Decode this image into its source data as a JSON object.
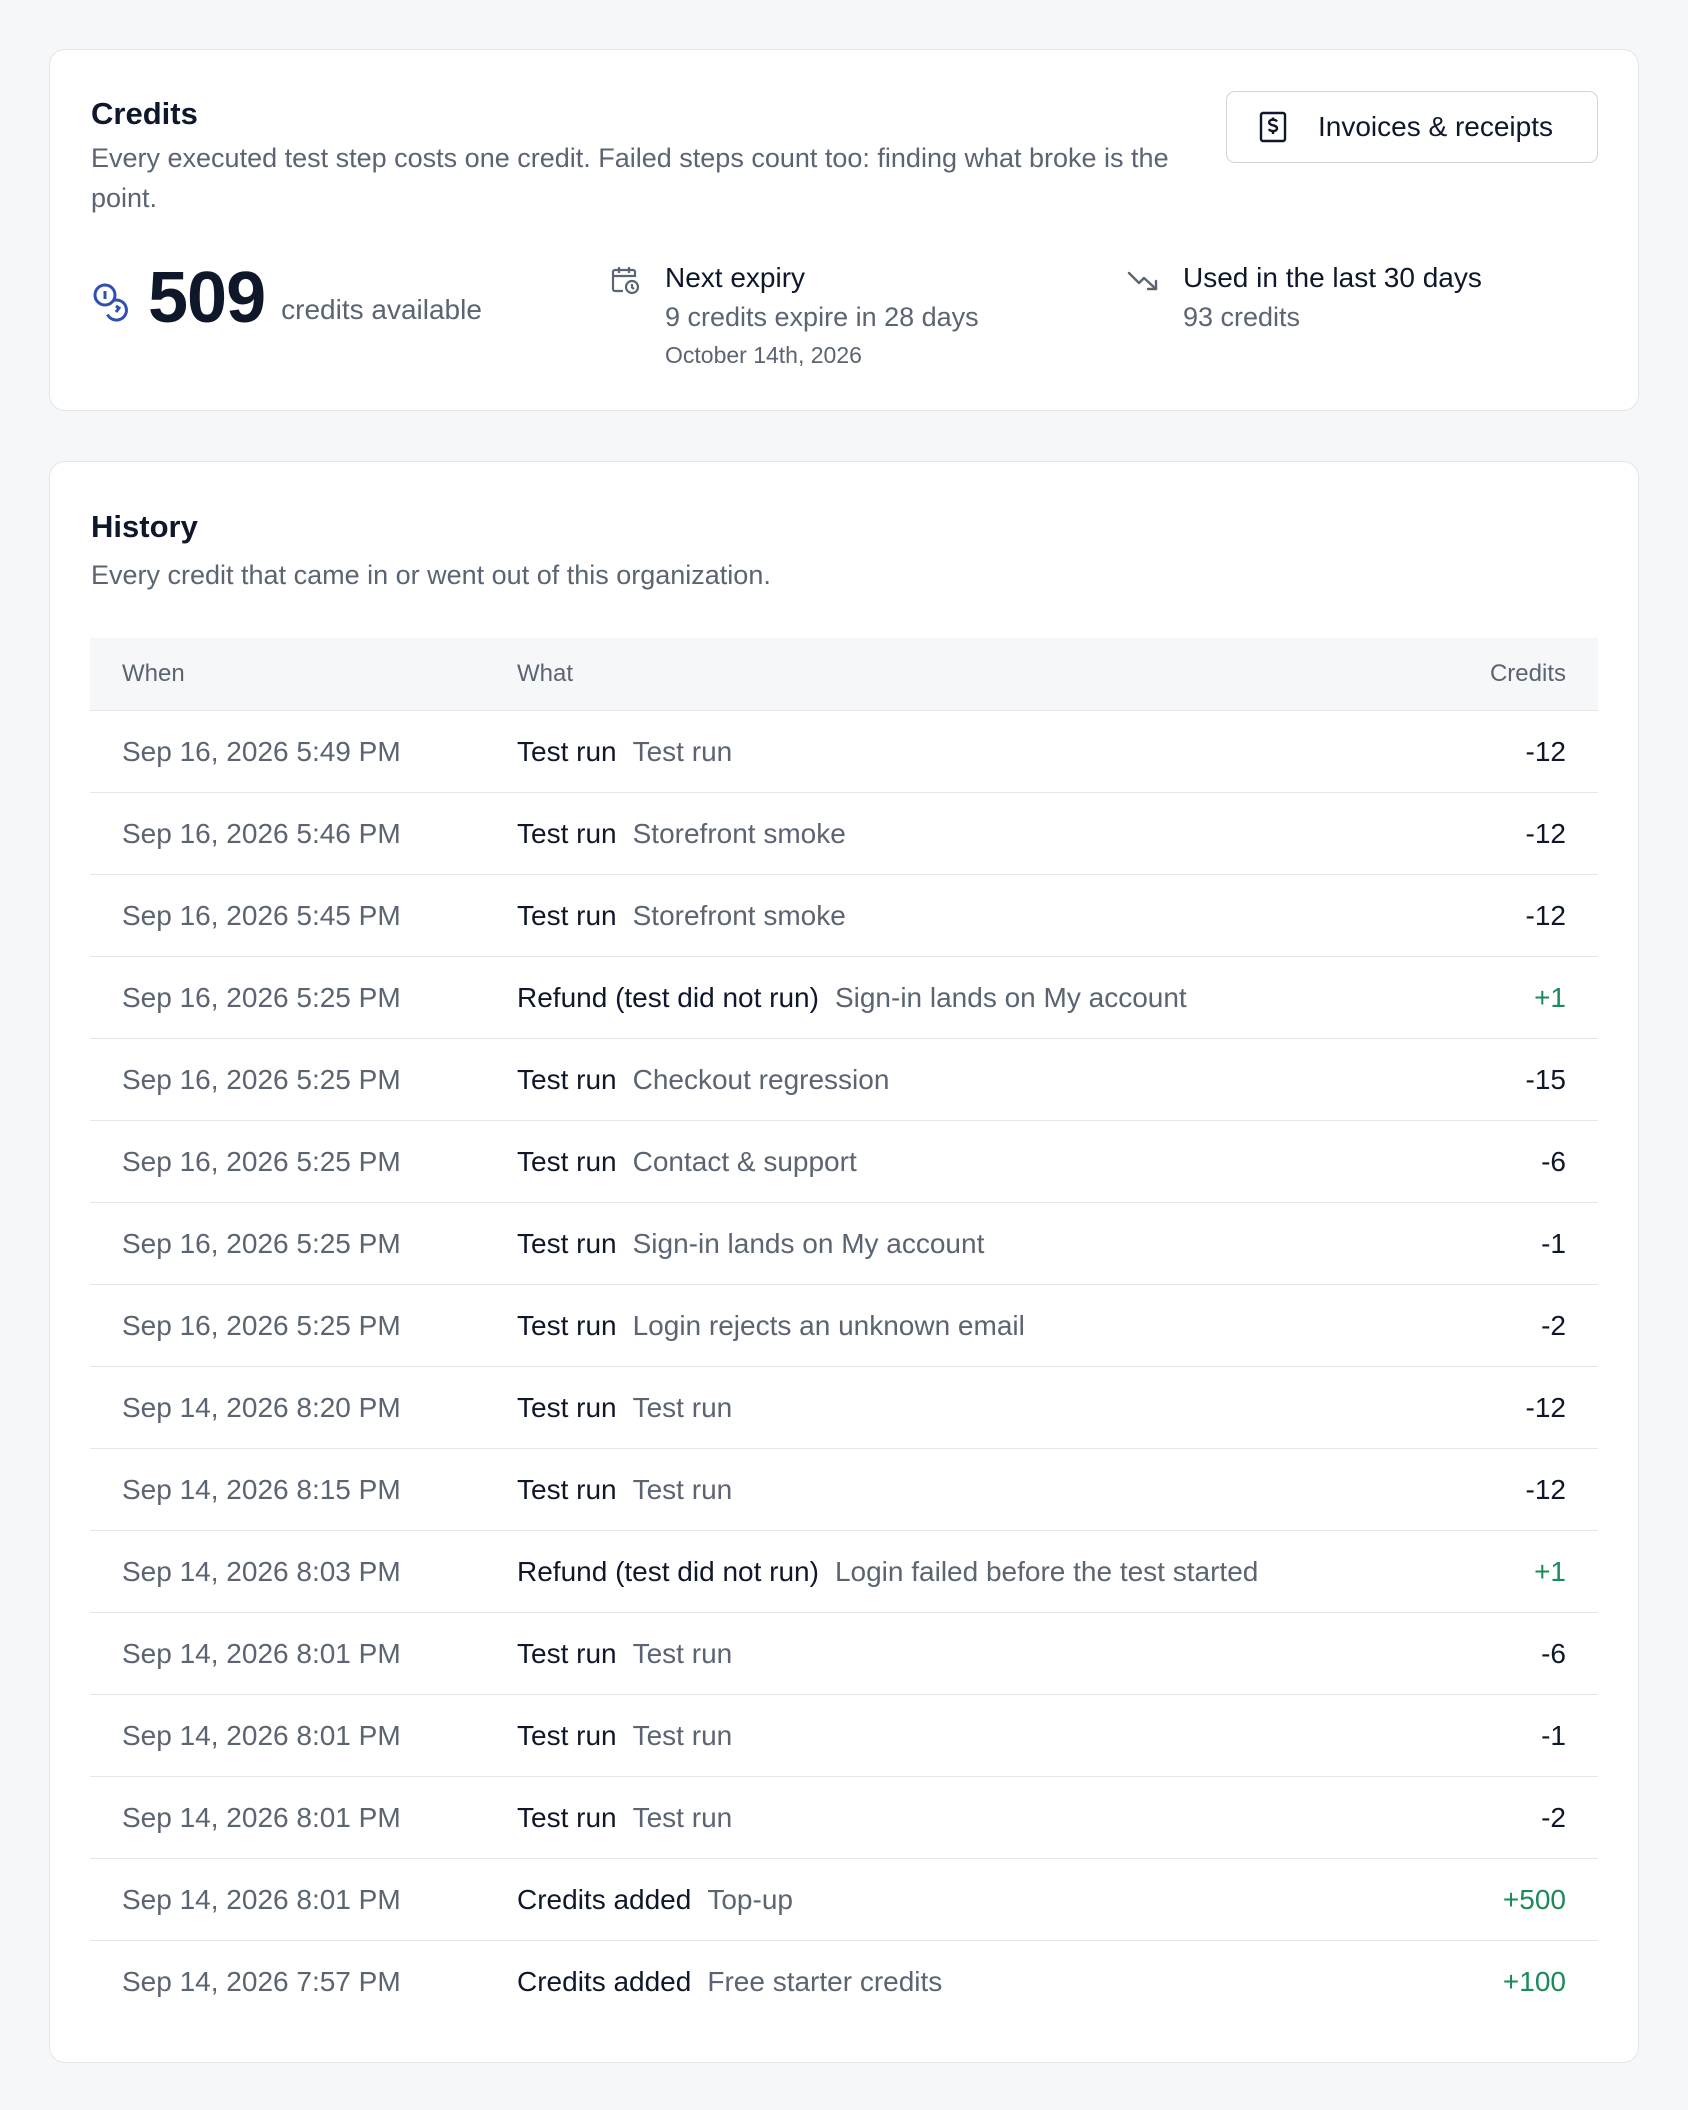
{
  "credits_card": {
    "title": "Credits",
    "description": "Every executed test step costs one credit. Failed steps count too: finding what broke is the point.",
    "invoices_button": "Invoices & receipts",
    "balance_value": "509",
    "balance_label": "credits available",
    "next_expiry": {
      "title": "Next expiry",
      "line": "9 credits expire in 28 days",
      "date": "October 14th, 2026"
    },
    "usage": {
      "title": "Used in the last 30 days",
      "line": "93 credits"
    },
    "accent_color": "#2f4fb4"
  },
  "history_card": {
    "title": "History",
    "description": "Every credit that came in or went out of this organization.",
    "columns": {
      "when": "When",
      "what": "What",
      "credits": "Credits"
    },
    "positive_color": "#1a8a5a",
    "rows": [
      {
        "when": "Sep 16, 2026 5:49 PM",
        "type": "Test run",
        "name": "Test run",
        "credits": "-12"
      },
      {
        "when": "Sep 16, 2026 5:46 PM",
        "type": "Test run",
        "name": "Storefront smoke",
        "credits": "-12"
      },
      {
        "when": "Sep 16, 2026 5:45 PM",
        "type": "Test run",
        "name": "Storefront smoke",
        "credits": "-12"
      },
      {
        "when": "Sep 16, 2026 5:25 PM",
        "type": "Refund (test did not run)",
        "name": "Sign-in lands on My account",
        "credits": "+1"
      },
      {
        "when": "Sep 16, 2026 5:25 PM",
        "type": "Test run",
        "name": "Checkout regression",
        "credits": "-15"
      },
      {
        "when": "Sep 16, 2026 5:25 PM",
        "type": "Test run",
        "name": "Contact & support",
        "credits": "-6"
      },
      {
        "when": "Sep 16, 2026 5:25 PM",
        "type": "Test run",
        "name": "Sign-in lands on My account",
        "credits": "-1"
      },
      {
        "when": "Sep 16, 2026 5:25 PM",
        "type": "Test run",
        "name": "Login rejects an unknown email",
        "credits": "-2"
      },
      {
        "when": "Sep 14, 2026 8:20 PM",
        "type": "Test run",
        "name": "Test run",
        "credits": "-12"
      },
      {
        "when": "Sep 14, 2026 8:15 PM",
        "type": "Test run",
        "name": "Test run",
        "credits": "-12"
      },
      {
        "when": "Sep 14, 2026 8:03 PM",
        "type": "Refund (test did not run)",
        "name": "Login failed before the test started",
        "credits": "+1"
      },
      {
        "when": "Sep 14, 2026 8:01 PM",
        "type": "Test run",
        "name": "Test run",
        "credits": "-6"
      },
      {
        "when": "Sep 14, 2026 8:01 PM",
        "type": "Test run",
        "name": "Test run",
        "credits": "-1"
      },
      {
        "when": "Sep 14, 2026 8:01 PM",
        "type": "Test run",
        "name": "Test run",
        "credits": "-2"
      },
      {
        "when": "Sep 14, 2026 8:01 PM",
        "type": "Credits added",
        "name": "Top-up",
        "credits": "+500"
      },
      {
        "when": "Sep 14, 2026 7:57 PM",
        "type": "Credits added",
        "name": "Free starter credits",
        "credits": "+100"
      }
    ]
  }
}
